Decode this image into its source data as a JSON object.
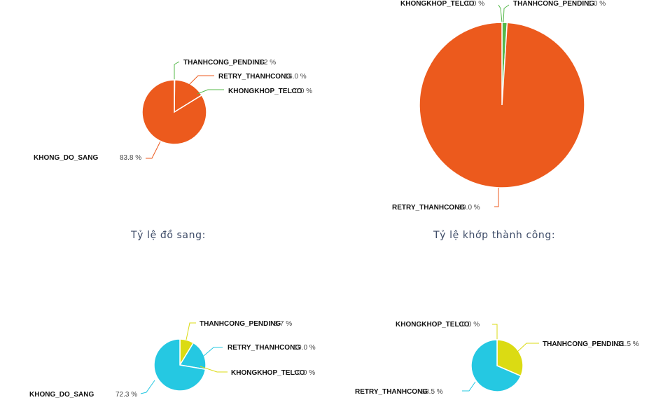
{
  "sections": {
    "do_sang_title": "Tỷ lệ đồ sang:",
    "khop_title": "Tỷ lệ khớp thành công:"
  },
  "colors": {
    "orange": "#ec5a1d",
    "green": "#55b84a",
    "cyan": "#25c8e2",
    "yellow": "#dbdb13",
    "label_text": "#111111",
    "percent_text": "#444444"
  },
  "chart_data": [
    {
      "type": "pie",
      "title": "",
      "color_key": "orange",
      "slices": [
        {
          "label": "THANHCONG_PENDING",
          "value": 0.2,
          "value_text": "0.2 %",
          "color_key": "green"
        },
        {
          "label": "RETRY_THANHCONG",
          "value": 16.0,
          "value_text": "16.0 %",
          "color_key": "orange"
        },
        {
          "label": "KHONGKHOP_TELCO",
          "value": 0.0,
          "value_text": "0.0 %",
          "color_key": "green"
        },
        {
          "label": "KHONG_DO_SANG",
          "value": 83.8,
          "value_text": "83.8 %",
          "color_key": "orange"
        }
      ]
    },
    {
      "type": "pie",
      "title": "",
      "slices": [
        {
          "label": "KHONGKHOP_TELCO",
          "value": 0.0,
          "value_text": "0.0 %",
          "color_key": "green"
        },
        {
          "label": "THANHCONG_PENDING",
          "value": 1.0,
          "value_text": "1.0 %",
          "color_key": "green"
        },
        {
          "label": "RETRY_THANHCONG",
          "value": 99.0,
          "value_text": "99.0 %",
          "color_key": "orange"
        }
      ]
    },
    {
      "type": "pie",
      "title": "",
      "slices": [
        {
          "label": "THANHCONG_PENDING",
          "value": 8.7,
          "value_text": "8.7 %",
          "color_key": "yellow"
        },
        {
          "label": "RETRY_THANHCONG",
          "value": 19.0,
          "value_text": "19.0 %",
          "color_key": "cyan"
        },
        {
          "label": "KHONGKHOP_TELCO",
          "value": 0.0,
          "value_text": "0.0 %",
          "color_key": "yellow"
        },
        {
          "label": "KHONG_DO_SANG",
          "value": 72.3,
          "value_text": "72.3 %",
          "color_key": "cyan"
        }
      ]
    },
    {
      "type": "pie",
      "title": "",
      "slices": [
        {
          "label": "KHONGKHOP_TELCO",
          "value": 0.0,
          "value_text": "0.0 %",
          "color_key": "yellow"
        },
        {
          "label": "THANHCONG_PENDING",
          "value": 31.5,
          "value_text": "31.5 %",
          "color_key": "yellow"
        },
        {
          "label": "RETRY_THANHCONG",
          "value": 68.5,
          "value_text": "68.5 %",
          "color_key": "cyan"
        }
      ]
    }
  ]
}
